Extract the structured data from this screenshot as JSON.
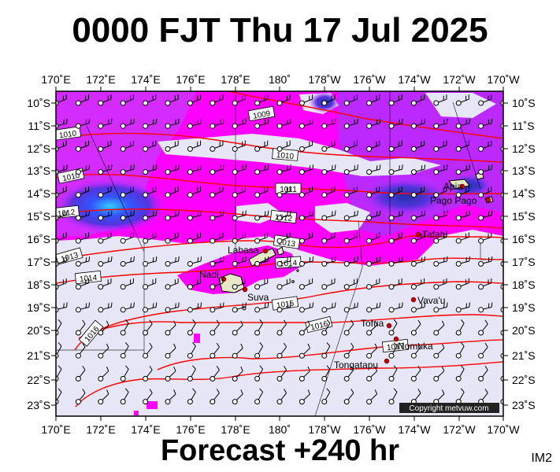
{
  "title": "0000 FJT Thu 17 Jul 2025",
  "footer": "Forecast +240 hr",
  "corner_label": "IM2",
  "copyright": "Copyright metvuw.com",
  "lon_labels": [
    "170˚E",
    "172˚E",
    "174˚E",
    "176˚E",
    "178˚E",
    "180˚",
    "178˚W",
    "176˚W",
    "174˚W",
    "172˚W",
    "170˚W"
  ],
  "lat_labels": [
    "10˚S",
    "11˚S",
    "12˚S",
    "13˚S",
    "14˚S",
    "15˚S",
    "16˚S",
    "17˚S",
    "18˚S",
    "19˚S",
    "20˚S",
    "21˚S",
    "22˚S",
    "23˚S"
  ],
  "isobar_labels": [
    "1009",
    "1010",
    "1010",
    "1010",
    "1011",
    "1012",
    "1012",
    "1013",
    "1013",
    "1014",
    "1014",
    "1015",
    "1016",
    "1016",
    "1017"
  ],
  "places": [
    "Apia",
    "Pago Pago",
    "Tafahi",
    "Labasa",
    "Nadi",
    "Suva",
    "Vava'u",
    "Tofua",
    "Nomuka",
    "Tongatapu"
  ],
  "colors": {
    "land_bg": "#e6e6f6",
    "rain_magenta": "#ff00ff",
    "rain_purple": "#cc33ff",
    "rain_blue": "#3344ff",
    "isobar": "#ff0000"
  }
}
